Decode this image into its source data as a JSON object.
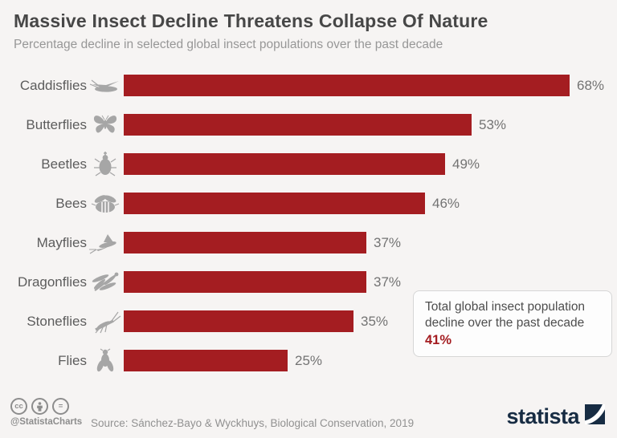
{
  "chart_data": {
    "type": "bar",
    "orientation": "horizontal",
    "title": "Massive Insect Decline Threatens Collapse Of Nature",
    "subtitle": "Percentage decline in selected global insect populations over the past decade",
    "categories": [
      "Caddisflies",
      "Butterflies",
      "Beetles",
      "Bees",
      "Mayflies",
      "Dragonflies",
      "Stoneflies",
      "Flies"
    ],
    "values": [
      68,
      53,
      49,
      46,
      37,
      37,
      35,
      25
    ],
    "value_suffix": "%",
    "xlim": [
      0,
      100
    ],
    "grid": false,
    "legend": false,
    "bar_color": "#a41d21",
    "icon_color": "#a6a6a6",
    "icons": [
      "caddisfly-icon",
      "butterfly-icon",
      "beetle-icon",
      "bee-icon",
      "mayfly-icon",
      "dragonfly-icon",
      "stonefly-icon",
      "fly-icon"
    ],
    "annotation": {
      "text": "Total global insect population decline over the past decade",
      "value": "41%",
      "value_color": "#a41d21"
    }
  },
  "footer": {
    "license": {
      "cc_glyph": "cc",
      "nd_glyph": "="
    },
    "handle": "@StatistaCharts",
    "source": "Source: Sánchez-Bayo & Wyckhuys, Biological Conservation, 2019",
    "brand_name": "statista"
  }
}
